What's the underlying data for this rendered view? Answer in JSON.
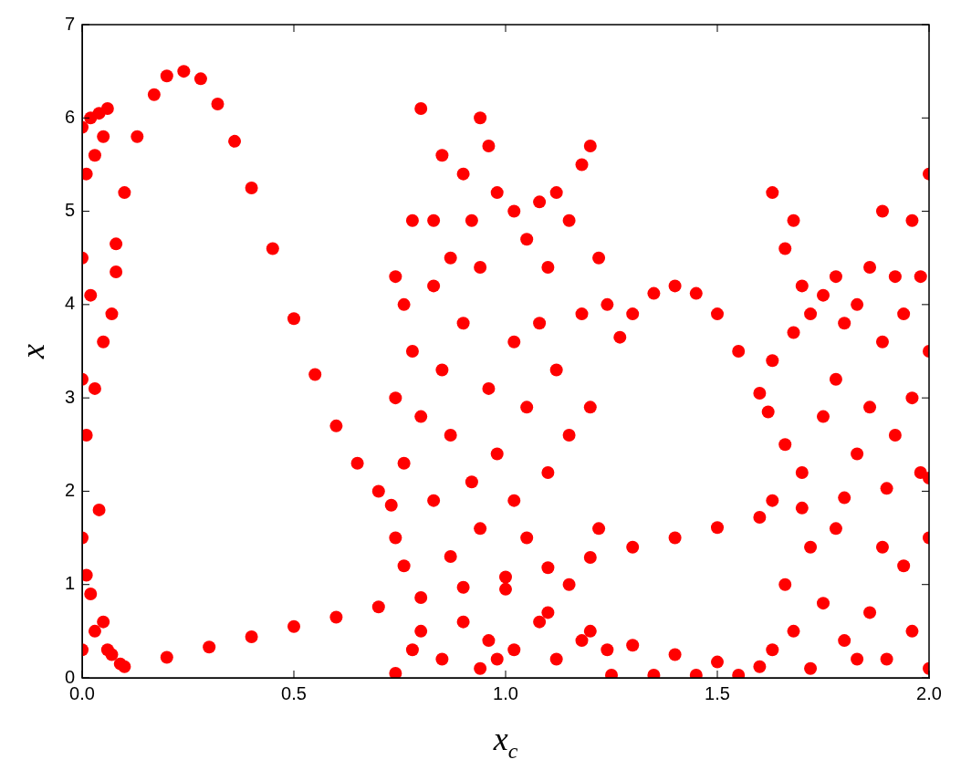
{
  "chart_data": {
    "type": "scatter",
    "xlabel": "x$_{c}$",
    "ylabel": "x",
    "marker": "circle",
    "grid": false,
    "legend": false,
    "xlim": [
      0,
      2
    ],
    "ylim": [
      0,
      7
    ],
    "xticks": [
      {
        "value": 0,
        "label": "0.0"
      },
      {
        "value": 0.5,
        "label": "0.5"
      },
      {
        "value": 1,
        "label": "1.0"
      },
      {
        "value": 1.5,
        "label": "1.5"
      },
      {
        "value": 2,
        "label": "2.0"
      }
    ],
    "yticks": [
      0,
      1,
      2,
      3,
      4,
      5,
      6,
      7
    ],
    "series": [
      {
        "color": "#ff0000",
        "x": [
          0.08,
          0.1,
          0.13,
          0.17,
          0.2,
          0.24,
          0.28,
          0.32,
          0.36,
          0.4,
          0.45,
          0.5,
          0.55,
          0.6,
          0.65,
          0.7,
          0.73,
          0.1,
          0.2,
          0.3,
          0.4,
          0.5,
          0.6,
          0.7,
          0.8,
          0.9,
          1.0,
          1.1,
          1.2,
          1.3,
          1.4,
          1.5,
          1.6,
          1.7,
          1.8,
          1.9,
          2.0,
          1.27,
          1.3,
          1.35,
          1.4,
          1.45,
          1.5,
          1.55,
          1.6,
          1.62,
          1.0,
          1.1,
          1.2,
          1.3,
          1.4,
          1.5,
          1.6,
          1.25,
          1.35,
          1.45,
          1.55,
          0.0,
          0.0,
          0.0,
          0.0,
          0.0,
          0.01,
          0.01,
          0.01,
          0.02,
          0.02,
          0.02,
          0.03,
          0.03,
          0.03,
          0.04,
          0.04,
          0.05,
          0.05,
          0.05,
          0.06,
          0.06,
          0.07,
          0.07,
          0.08,
          0.09,
          0.74,
          0.74,
          0.74,
          0.74,
          0.76,
          0.76,
          0.76,
          0.78,
          0.78,
          0.78,
          0.8,
          0.8,
          0.8,
          0.83,
          0.83,
          0.83,
          0.85,
          0.85,
          0.85,
          0.87,
          0.87,
          0.87,
          0.9,
          0.9,
          0.9,
          0.92,
          0.92,
          0.94,
          0.94,
          0.94,
          0.94,
          0.96,
          0.96,
          0.96,
          0.98,
          0.98,
          0.98,
          1.02,
          1.02,
          1.02,
          1.02,
          1.05,
          1.05,
          1.05,
          1.08,
          1.08,
          1.08,
          1.1,
          1.1,
          1.12,
          1.12,
          1.12,
          1.15,
          1.15,
          1.15,
          1.18,
          1.18,
          1.18,
          1.2,
          1.2,
          1.22,
          1.22,
          1.24,
          1.24,
          1.63,
          1.63,
          1.63,
          1.63,
          1.66,
          1.66,
          1.66,
          1.68,
          1.68,
          1.68,
          1.7,
          1.7,
          1.72,
          1.72,
          1.72,
          1.75,
          1.75,
          1.75,
          1.78,
          1.78,
          1.78,
          1.8,
          1.8,
          1.83,
          1.83,
          1.83,
          1.86,
          1.86,
          1.86,
          1.89,
          1.89,
          1.89,
          1.9,
          1.92,
          1.92,
          1.94,
          1.94,
          1.96,
          1.96,
          1.96,
          1.98,
          1.98,
          2.0,
          2.0,
          2.0,
          2.0
        ],
        "values": [
          4.65,
          5.2,
          5.8,
          6.25,
          6.45,
          6.5,
          6.42,
          6.15,
          5.75,
          5.25,
          4.6,
          3.85,
          3.25,
          2.7,
          2.3,
          2.0,
          1.85,
          0.12,
          0.22,
          0.33,
          0.44,
          0.55,
          0.65,
          0.76,
          0.86,
          0.97,
          1.08,
          1.18,
          1.29,
          1.4,
          1.5,
          1.61,
          1.72,
          1.82,
          1.93,
          2.03,
          2.14,
          3.65,
          3.9,
          4.12,
          4.2,
          4.12,
          3.9,
          3.5,
          3.05,
          2.85,
          0.95,
          0.7,
          0.5,
          0.35,
          0.25,
          0.17,
          0.12,
          0.03,
          0.03,
          0.03,
          0.03,
          5.9,
          4.5,
          3.2,
          1.5,
          0.3,
          5.4,
          2.6,
          1.1,
          6.0,
          4.1,
          0.9,
          5.6,
          3.1,
          0.5,
          6.05,
          1.8,
          5.8,
          3.6,
          0.6,
          6.1,
          0.3,
          3.9,
          0.25,
          4.35,
          0.15,
          4.3,
          3.0,
          1.5,
          0.05,
          4.0,
          2.3,
          1.2,
          4.9,
          3.5,
          0.3,
          6.1,
          2.8,
          0.5,
          4.9,
          4.2,
          1.9,
          5.6,
          3.3,
          0.2,
          4.5,
          2.6,
          1.3,
          5.4,
          3.8,
          0.6,
          4.9,
          2.1,
          6.0,
          4.4,
          1.6,
          0.1,
          5.7,
          3.1,
          0.4,
          5.2,
          2.4,
          0.2,
          5.0,
          3.6,
          1.9,
          0.3,
          4.7,
          2.9,
          1.5,
          5.1,
          3.8,
          0.6,
          4.4,
          2.2,
          5.2,
          3.3,
          0.2,
          4.9,
          2.6,
          1.0,
          5.5,
          3.9,
          0.4,
          5.7,
          2.9,
          4.5,
          1.6,
          4.0,
          0.3,
          5.2,
          3.4,
          1.9,
          0.3,
          4.6,
          2.5,
          1.0,
          4.9,
          3.7,
          0.5,
          4.2,
          2.2,
          3.9,
          1.4,
          0.1,
          4.1,
          2.8,
          0.8,
          4.3,
          3.2,
          1.6,
          3.8,
          0.4,
          4.0,
          2.4,
          0.2,
          4.4,
          2.9,
          0.7,
          5.0,
          3.6,
          1.4,
          0.2,
          4.3,
          2.6,
          3.9,
          1.2,
          4.9,
          3.0,
          0.5,
          4.3,
          2.2,
          5.4,
          3.5,
          1.5,
          0.1
        ]
      }
    ]
  }
}
